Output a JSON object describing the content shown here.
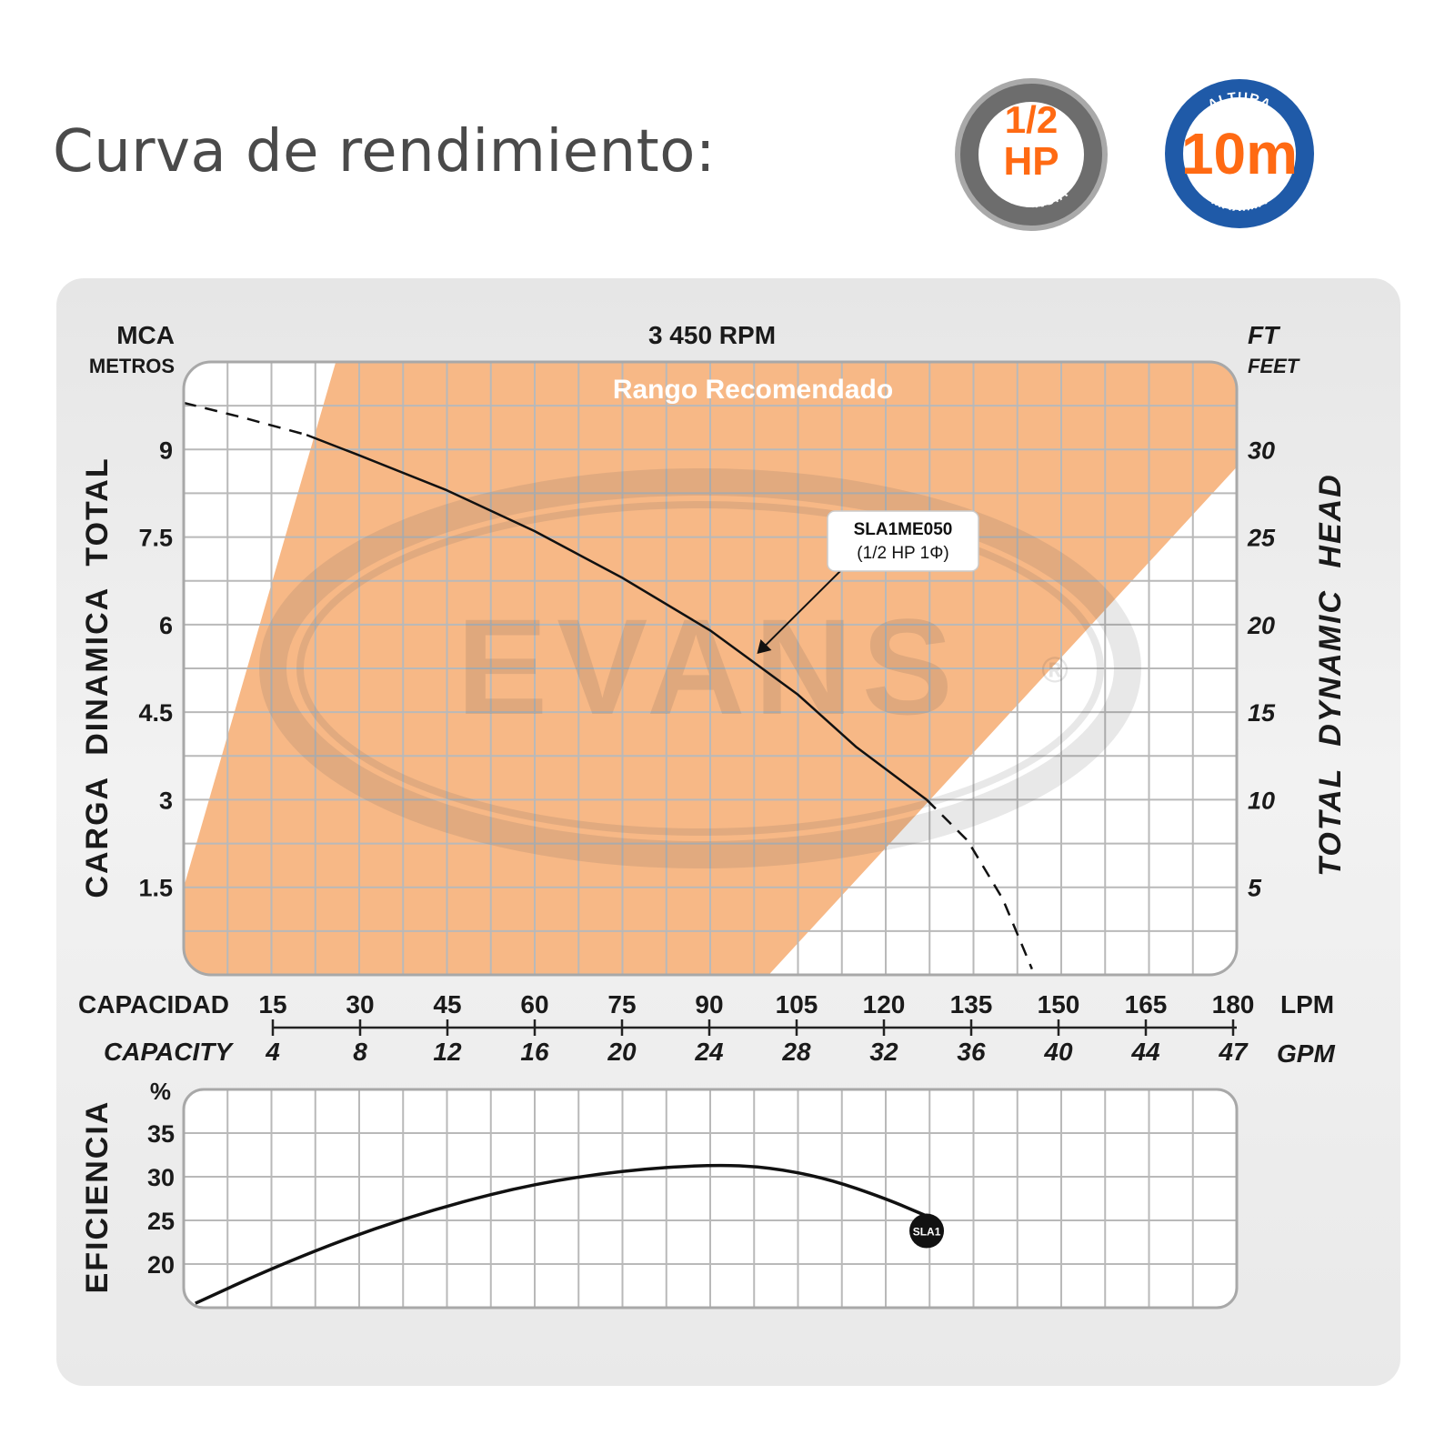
{
  "page": {
    "title": "Curva de rendimiento:"
  },
  "badges": {
    "power": {
      "value": "1/2",
      "unit": "HP",
      "caption": "POTENCIA"
    },
    "height": {
      "top": "ALTURA",
      "value": "10m",
      "bottom": "MÁXIMA"
    }
  },
  "colors": {
    "accent_orange": "#ff6a13",
    "range_fill": "#f7b886",
    "brand_blue": "#1f5aa8",
    "curve": "#111111",
    "grid": "#b9b9b9",
    "plot_bg": "#ffffff"
  },
  "watermark": {
    "text": "EVANS",
    "mark": "®"
  },
  "chart_data": [
    {
      "type": "line",
      "title": "3 450 RPM",
      "left_axis": {
        "unit_top": "MCA",
        "unit_bottom": "METROS",
        "label": "CARGA DINAMICA TOTAL",
        "ticks": [
          1.5,
          3,
          4.5,
          6,
          7.5,
          9
        ],
        "ylim": [
          0,
          10.5
        ]
      },
      "right_axis": {
        "unit_top": "FT",
        "unit_bottom": "FEET",
        "label": "TOTAL DYNAMIC HEAD",
        "ticks": [
          5,
          10,
          15,
          20,
          25,
          30
        ]
      },
      "x_axis": {
        "primary_label": "CAPACIDAD",
        "primary_unit": "LPM",
        "primary_ticks": [
          15,
          30,
          45,
          60,
          75,
          90,
          105,
          120,
          135,
          150,
          165,
          180
        ],
        "secondary_label": "CAPACITY",
        "secondary_unit": "GPM",
        "secondary_ticks": [
          4,
          8,
          12,
          16,
          20,
          24,
          28,
          32,
          36,
          40,
          44,
          47
        ],
        "xlim": [
          0,
          180
        ]
      },
      "recommended_range": {
        "label": "Rango Recomendado",
        "polygon": [
          [
            0,
            1.5
          ],
          [
            26,
            10.5
          ],
          [
            180,
            10.5
          ],
          [
            180,
            8.7
          ],
          [
            100,
            0
          ],
          [
            0,
            0
          ]
        ]
      },
      "series": [
        {
          "name": "SLA1ME050",
          "annotation": {
            "line1": "SLA1ME050",
            "line2": "(1/2 HP   1Φ)",
            "target": [
              98,
              5.5
            ]
          },
          "solid": [
            [
              21,
              9.25
            ],
            [
              30,
              8.9
            ],
            [
              45,
              8.3
            ],
            [
              60,
              7.6
            ],
            [
              75,
              6.8
            ],
            [
              90,
              5.9
            ],
            [
              105,
              4.8
            ],
            [
              115,
              3.9
            ],
            [
              127,
              3.0
            ]
          ],
          "dashed_before": [
            [
              0,
              9.8
            ],
            [
              10,
              9.55
            ],
            [
              21,
              9.25
            ]
          ],
          "dashed_after": [
            [
              127,
              3.0
            ],
            [
              134,
              2.3
            ],
            [
              140,
              1.3
            ],
            [
              145,
              0.1
            ]
          ]
        }
      ],
      "grid": true
    },
    {
      "type": "line",
      "left_axis": {
        "unit_top": "%",
        "label": "EFICIENCIA",
        "ticks": [
          20,
          25,
          30,
          35
        ],
        "ylim": [
          15,
          40
        ]
      },
      "xlim": [
        0,
        180
      ],
      "series": [
        {
          "name": "SLA1",
          "points": [
            [
              2,
              15.5
            ],
            [
              15,
              19.5
            ],
            [
              30,
              23.5
            ],
            [
              45,
              26.7
            ],
            [
              60,
              29.2
            ],
            [
              75,
              30.7
            ],
            [
              90,
              31.4
            ],
            [
              100,
              31.1
            ],
            [
              110,
              29.8
            ],
            [
              120,
              27.5
            ],
            [
              127,
              25.5
            ]
          ],
          "marker": {
            "x": 127,
            "y": 23.8,
            "label": "SLA1"
          }
        }
      ],
      "grid": true
    }
  ]
}
